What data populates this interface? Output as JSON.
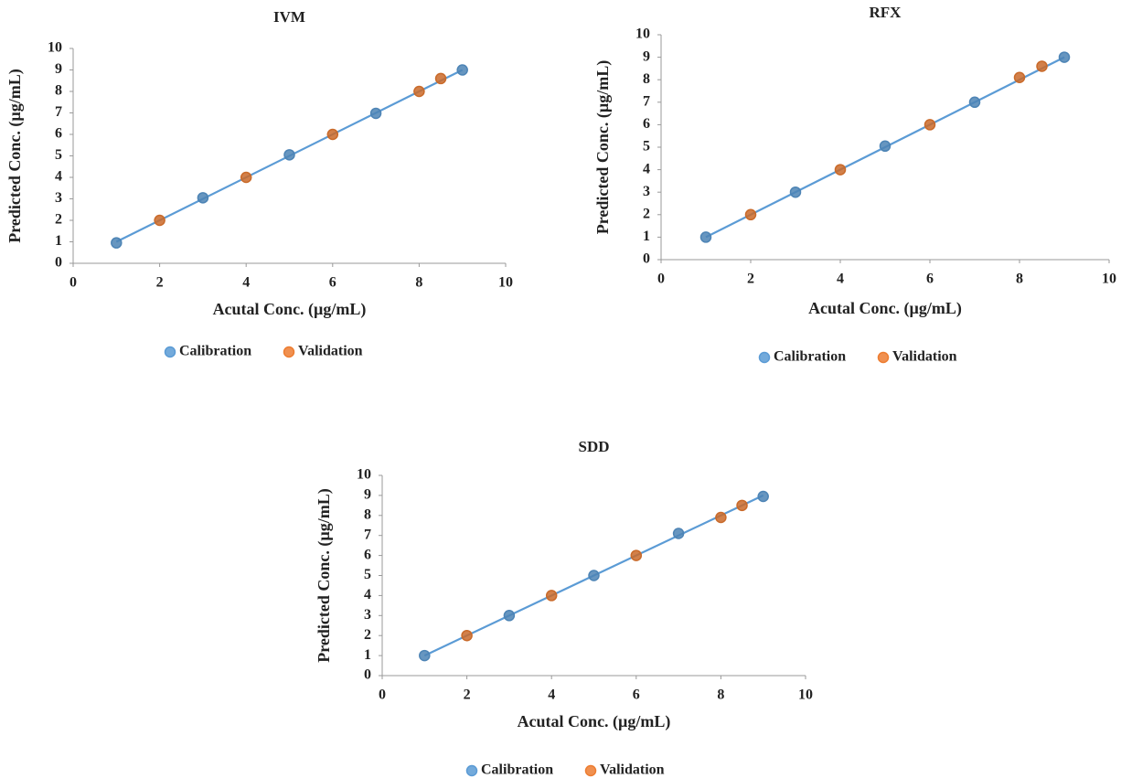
{
  "chart_data": [
    {
      "type": "scatter",
      "title": "IVM",
      "xlabel": "Acutal Conc. (µg/mL)",
      "ylabel": "Predicted Conc. (µg/mL)",
      "xlim": [
        0,
        10
      ],
      "xticks": [
        0,
        2,
        4,
        6,
        8,
        10
      ],
      "ylim": [
        0,
        10
      ],
      "yticks": [
        0,
        1,
        2,
        3,
        4,
        5,
        6,
        7,
        8,
        9,
        10
      ],
      "series": [
        {
          "name": "Calibration",
          "color": "#5b9bd5",
          "x": [
            1,
            3,
            5,
            7,
            9
          ],
          "values": [
            0.95,
            3.05,
            5.05,
            6.98,
            9.0
          ]
        },
        {
          "name": "Validation",
          "color": "#ed7d31",
          "x": [
            2,
            4,
            6,
            8,
            8.5
          ],
          "values": [
            2.0,
            4.0,
            6.0,
            8.0,
            8.6
          ]
        }
      ],
      "trendline": {
        "color": "#5b9bd5",
        "x": [
          1,
          9
        ],
        "values": [
          1,
          9
        ]
      },
      "legend": "bottom"
    },
    {
      "type": "scatter",
      "title": "RFX",
      "xlabel": "Acutal Conc.  (µg/mL)",
      "ylabel": "Predicted Conc.  (µg/mL)",
      "xlim": [
        0,
        10
      ],
      "xticks": [
        0,
        2,
        4,
        6,
        8,
        10
      ],
      "ylim": [
        0,
        10
      ],
      "yticks": [
        0,
        1,
        2,
        3,
        4,
        5,
        6,
        7,
        8,
        9,
        10
      ],
      "series": [
        {
          "name": "Calibration",
          "color": "#5b9bd5",
          "x": [
            1,
            3,
            5,
            7,
            9
          ],
          "values": [
            1.0,
            3.0,
            5.05,
            7.0,
            9.0
          ]
        },
        {
          "name": "Validation",
          "color": "#ed7d31",
          "x": [
            2,
            4,
            6,
            8,
            8.5
          ],
          "values": [
            2.0,
            4.0,
            6.0,
            8.1,
            8.6
          ]
        }
      ],
      "trendline": {
        "color": "#5b9bd5",
        "x": [
          1,
          9
        ],
        "values": [
          1,
          9
        ]
      },
      "legend": "bottom"
    },
    {
      "type": "scatter",
      "title": "SDD",
      "xlabel": "Acutal Conc. (µg/mL)",
      "ylabel": "Predicted  Conc. (µg/mL)",
      "xlim": [
        0,
        10
      ],
      "xticks": [
        0,
        2,
        4,
        6,
        8,
        10
      ],
      "ylim": [
        0,
        10
      ],
      "yticks": [
        0,
        1,
        2,
        3,
        4,
        5,
        6,
        7,
        8,
        9,
        10
      ],
      "series": [
        {
          "name": "Calibration",
          "color": "#5b9bd5",
          "x": [
            1,
            3,
            5,
            7,
            9
          ],
          "values": [
            1.0,
            3.0,
            5.0,
            7.1,
            8.95
          ]
        },
        {
          "name": "Validation",
          "color": "#ed7d31",
          "x": [
            2,
            4,
            6,
            8,
            8.5
          ],
          "values": [
            2.0,
            4.0,
            6.0,
            7.9,
            8.5
          ]
        }
      ],
      "trendline": {
        "color": "#5b9bd5",
        "x": [
          1,
          9
        ],
        "values": [
          1,
          9
        ]
      },
      "legend": "bottom"
    }
  ]
}
